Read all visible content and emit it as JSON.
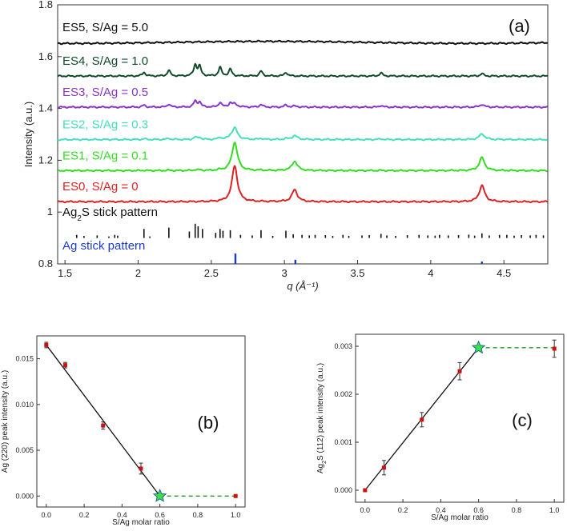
{
  "chart_data": [
    {
      "id": "a",
      "type": "line",
      "panel_label": "(a)",
      "xlabel": "q (Å⁻¹)",
      "ylabel": "Intensity (a.u.)",
      "xlim": [
        1.45,
        4.8
      ],
      "ylim": [
        0.8,
        1.8
      ],
      "xticks": [
        "1.5",
        "2",
        "2.5",
        "3",
        "3.5",
        "4",
        "4.5"
      ],
      "yticks": [
        "0.8",
        "1",
        "1.2",
        "1.4",
        "1.6",
        "1.8"
      ],
      "peaks": {
        "ag": [
          {
            "q": 2.66,
            "rel": 1.0
          },
          {
            "q": 3.07,
            "rel": 0.33
          },
          {
            "q": 4.35,
            "rel": 0.45
          }
        ],
        "ag2s": [
          {
            "q": 2.04,
            "rel": 0.12
          },
          {
            "q": 2.21,
            "rel": 0.18
          },
          {
            "q": 2.39,
            "rel": 0.35
          },
          {
            "q": 2.42,
            "rel": 0.3
          },
          {
            "q": 2.56,
            "rel": 0.28
          },
          {
            "q": 2.63,
            "rel": 0.22
          },
          {
            "q": 2.84,
            "rel": 0.16
          },
          {
            "q": 3.01,
            "rel": 0.12
          },
          {
            "q": 3.66,
            "rel": 0.1
          },
          {
            "q": 4.35,
            "rel": 0.08
          }
        ]
      },
      "series": [
        {
          "name": "ES0, S/Ag = 0",
          "color": "#dd2222",
          "baseline": 1.04,
          "ag_weight": 0.14,
          "ag2s_weight": 0.0
        },
        {
          "name": "ES1, S/Ag = 0.1",
          "color": "#33dd22",
          "baseline": 1.16,
          "ag_weight": 0.11,
          "ag2s_weight": 0.004
        },
        {
          "name": "ES2, S/Ag = 0.3",
          "color": "#44e0bb",
          "baseline": 1.28,
          "ag_weight": 0.045,
          "ag2s_weight": 0.012
        },
        {
          "name": "ES3, S/Ag = 0.5",
          "color": "#8833cc",
          "baseline": 1.405,
          "ag_weight": 0.012,
          "ag2s_weight": 0.03
        },
        {
          "name": "ES4, S/Ag = 1.0",
          "color": "#114a2a",
          "baseline": 1.525,
          "ag_weight": 0.0,
          "ag2s_weight": 0.055
        },
        {
          "name": "ES5, S/Ag = 5.0",
          "color": "#111111",
          "baseline": 1.655,
          "ag_weight": 0.0,
          "ag2s_weight": 0.0
        }
      ],
      "stick_patterns": [
        {
          "name_base": "Ag",
          "name_sub": "2",
          "name_rest": "S stick pattern",
          "color": "#111111",
          "baseline": 0.9,
          "sticks": [
            [
              1.58,
              0.012
            ],
            [
              1.63,
              0.008
            ],
            [
              1.72,
              0.01
            ],
            [
              1.8,
              0.006
            ],
            [
              1.84,
              0.012
            ],
            [
              1.86,
              0.009
            ],
            [
              2.04,
              0.035
            ],
            [
              2.08,
              0.006
            ],
            [
              2.21,
              0.04
            ],
            [
              2.35,
              0.025
            ],
            [
              2.39,
              0.055
            ],
            [
              2.41,
              0.045
            ],
            [
              2.44,
              0.035
            ],
            [
              2.53,
              0.02
            ],
            [
              2.56,
              0.035
            ],
            [
              2.58,
              0.028
            ],
            [
              2.63,
              0.03
            ],
            [
              2.7,
              0.012
            ],
            [
              2.78,
              0.01
            ],
            [
              2.84,
              0.03
            ],
            [
              2.92,
              0.008
            ],
            [
              3.01,
              0.028
            ],
            [
              3.06,
              0.014
            ],
            [
              3.12,
              0.012
            ],
            [
              3.17,
              0.01
            ],
            [
              3.21,
              0.012
            ],
            [
              3.28,
              0.011
            ],
            [
              3.33,
              0.008
            ],
            [
              3.4,
              0.012
            ],
            [
              3.44,
              0.008
            ],
            [
              3.53,
              0.01
            ],
            [
              3.58,
              0.011
            ],
            [
              3.66,
              0.016
            ],
            [
              3.7,
              0.01
            ],
            [
              3.76,
              0.008
            ],
            [
              3.84,
              0.011
            ],
            [
              3.92,
              0.012
            ],
            [
              3.98,
              0.01
            ],
            [
              4.03,
              0.009
            ],
            [
              4.06,
              0.012
            ],
            [
              4.12,
              0.01
            ],
            [
              4.19,
              0.011
            ],
            [
              4.26,
              0.013
            ],
            [
              4.3,
              0.009
            ],
            [
              4.35,
              0.018
            ],
            [
              4.4,
              0.01
            ],
            [
              4.47,
              0.012
            ],
            [
              4.52,
              0.012
            ],
            [
              4.57,
              0.009
            ],
            [
              4.62,
              0.011
            ],
            [
              4.68,
              0.01
            ],
            [
              4.72,
              0.012
            ],
            [
              4.77,
              0.01
            ]
          ]
        },
        {
          "name_base": "Ag stick pattern",
          "name_sub": "",
          "name_rest": "",
          "color": "#1a3acc",
          "baseline": 0.8,
          "sticks": [
            [
              2.665,
              0.04
            ],
            [
              3.075,
              0.016
            ],
            [
              4.35,
              0.009
            ]
          ]
        }
      ]
    },
    {
      "id": "b",
      "type": "scatter",
      "panel_label": "(b)",
      "xlabel": "S/Ag molar ratio",
      "ylabel": "Ag (220) peak intensity (a.u.)",
      "xlim": [
        -0.05,
        1.05
      ],
      "ylim": [
        -0.0012,
        0.0175
      ],
      "xticks": [
        "0.0",
        "0.2",
        "0.4",
        "0.6",
        "0.8",
        "1.0"
      ],
      "yticks": [
        "0.000",
        "0.005",
        "0.010",
        "0.015"
      ],
      "points": [
        {
          "x": 0.0,
          "y": 0.0165,
          "err": 0.0003
        },
        {
          "x": 0.1,
          "y": 0.0143,
          "err": 0.0003
        },
        {
          "x": 0.3,
          "y": 0.0077,
          "err": 0.0004
        },
        {
          "x": 0.5,
          "y": 0.003,
          "err": 0.0006
        },
        {
          "x": 1.0,
          "y": 0.0,
          "err": 0.0
        }
      ],
      "fit_line": [
        [
          0.0,
          0.0165
        ],
        [
          0.6,
          0.0
        ]
      ],
      "plateau_line": [
        [
          0.6,
          0.0
        ],
        [
          1.0,
          0.0
        ]
      ],
      "star": {
        "x": 0.6,
        "y": 0.0
      }
    },
    {
      "id": "c",
      "type": "scatter",
      "panel_label": "(c)",
      "xlabel": "S/Ag molar ratio",
      "ylabel_base": "Ag",
      "ylabel_sub": "2",
      "ylabel_rest": "S (112) peak intensity (a.u.)",
      "xlim": [
        -0.05,
        1.05
      ],
      "ylim": [
        -0.00025,
        0.00325
      ],
      "xticks": [
        "0.0",
        "0.2",
        "0.4",
        "0.6",
        "0.8",
        "1.0"
      ],
      "yticks": [
        "0.000",
        "0.001",
        "0.002",
        "0.003"
      ],
      "points": [
        {
          "x": 0.0,
          "y": 0.0,
          "err": 0.0
        },
        {
          "x": 0.1,
          "y": 0.00047,
          "err": 0.00015
        },
        {
          "x": 0.3,
          "y": 0.00147,
          "err": 0.00015
        },
        {
          "x": 0.5,
          "y": 0.00248,
          "err": 0.00018
        },
        {
          "x": 1.0,
          "y": 0.00295,
          "err": 0.00018
        }
      ],
      "fit_line": [
        [
          0.0,
          0.0
        ],
        [
          0.6,
          0.00297
        ]
      ],
      "plateau_line": [
        [
          0.6,
          0.00297
        ],
        [
          1.0,
          0.00297
        ]
      ],
      "star": {
        "x": 0.6,
        "y": 0.00297
      }
    }
  ],
  "colors": {
    "fit": "#111111",
    "plateau": "#229922",
    "marker": "#cc1111",
    "star_fill": "#3ee04a",
    "star_stroke": "#1a6e8a"
  }
}
